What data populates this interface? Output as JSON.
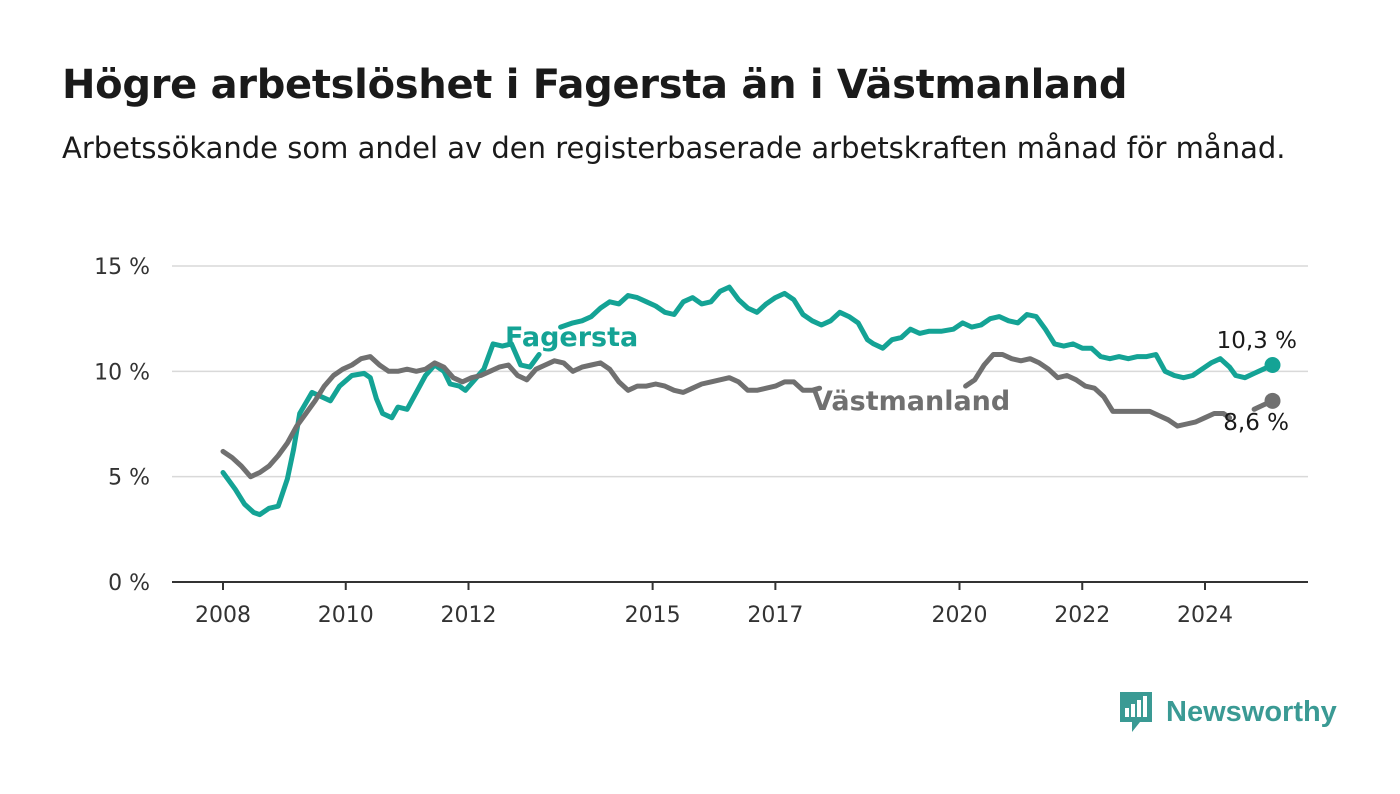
{
  "title": "Högre arbetslöshet i Fagersta än i Västmanland",
  "subtitle": "Arbetssökande som andel av den registerbaserade arbetskraften månad för månad.",
  "brand": {
    "name": "Newsworthy",
    "color": "#3a9a94",
    "icon": "newsworthy-chart-bubble-icon"
  },
  "chart_data": {
    "type": "line",
    "ylim": [
      0,
      15
    ],
    "yticks": [
      0,
      5,
      10,
      15
    ],
    "ytick_labels": [
      "0 %",
      "5 %",
      "10 %",
      "15 %"
    ],
    "xlim": [
      2007.6,
      2025.7
    ],
    "xticks": [
      2008,
      2010,
      2012,
      2015,
      2017,
      2020,
      2022,
      2024
    ],
    "xtick_labels": [
      "2008",
      "2010",
      "2012",
      "2015",
      "2017",
      "2020",
      "2022",
      "2024"
    ],
    "grid": true,
    "legend": "inline labels",
    "series": [
      {
        "name": "Fagersta",
        "color": "#14a395",
        "end_label": "10,3 %",
        "end_value": 10.3,
        "points": [
          [
            2008.0,
            5.2
          ],
          [
            2008.2,
            4.4
          ],
          [
            2008.35,
            3.7
          ],
          [
            2008.5,
            3.3
          ],
          [
            2008.6,
            3.2
          ],
          [
            2008.75,
            3.5
          ],
          [
            2008.9,
            3.6
          ],
          [
            2009.05,
            4.9
          ],
          [
            2009.15,
            6.3
          ],
          [
            2009.25,
            8.0
          ],
          [
            2009.35,
            8.5
          ],
          [
            2009.45,
            9.0
          ],
          [
            2009.6,
            8.8
          ],
          [
            2009.75,
            8.6
          ],
          [
            2009.9,
            9.3
          ],
          [
            2010.1,
            9.8
          ],
          [
            2010.3,
            9.9
          ],
          [
            2010.4,
            9.7
          ],
          [
            2010.5,
            8.7
          ],
          [
            2010.6,
            8.0
          ],
          [
            2010.75,
            7.8
          ],
          [
            2010.85,
            8.3
          ],
          [
            2011.0,
            8.2
          ],
          [
            2011.15,
            9.0
          ],
          [
            2011.3,
            9.8
          ],
          [
            2011.45,
            10.3
          ],
          [
            2011.6,
            10.0
          ],
          [
            2011.7,
            9.4
          ],
          [
            2011.85,
            9.3
          ],
          [
            2011.95,
            9.1
          ],
          [
            2012.1,
            9.6
          ],
          [
            2012.25,
            10.1
          ],
          [
            2012.4,
            11.3
          ],
          [
            2012.55,
            11.2
          ],
          [
            2012.7,
            11.3
          ],
          [
            2012.85,
            10.3
          ],
          [
            2013.0,
            10.2
          ],
          [
            2013.15,
            10.8
          ]
        ],
        "points2": [
          [
            2013.5,
            12.1
          ],
          [
            2013.7,
            12.3
          ],
          [
            2013.85,
            12.4
          ],
          [
            2014.0,
            12.6
          ],
          [
            2014.15,
            13.0
          ],
          [
            2014.3,
            13.3
          ],
          [
            2014.45,
            13.2
          ],
          [
            2014.6,
            13.6
          ],
          [
            2014.75,
            13.5
          ],
          [
            2014.9,
            13.3
          ],
          [
            2015.05,
            13.1
          ],
          [
            2015.2,
            12.8
          ],
          [
            2015.35,
            12.7
          ],
          [
            2015.5,
            13.3
          ],
          [
            2015.65,
            13.5
          ],
          [
            2015.8,
            13.2
          ],
          [
            2015.95,
            13.3
          ],
          [
            2016.1,
            13.8
          ],
          [
            2016.25,
            14.0
          ],
          [
            2016.4,
            13.4
          ],
          [
            2016.55,
            13.0
          ],
          [
            2016.7,
            12.8
          ],
          [
            2016.85,
            13.2
          ],
          [
            2017.0,
            13.5
          ],
          [
            2017.15,
            13.7
          ],
          [
            2017.3,
            13.4
          ],
          [
            2017.45,
            12.7
          ],
          [
            2017.6,
            12.4
          ],
          [
            2017.75,
            12.2
          ],
          [
            2017.9,
            12.4
          ],
          [
            2018.05,
            12.8
          ],
          [
            2018.2,
            12.6
          ],
          [
            2018.35,
            12.3
          ],
          [
            2018.5,
            11.5
          ],
          [
            2018.6,
            11.3
          ],
          [
            2018.75,
            11.1
          ],
          [
            2018.9,
            11.5
          ],
          [
            2019.05,
            11.6
          ],
          [
            2019.2,
            12.0
          ],
          [
            2019.35,
            11.8
          ],
          [
            2019.5,
            11.9
          ],
          [
            2019.7,
            11.9
          ],
          [
            2019.9,
            12.0
          ],
          [
            2020.05,
            12.3
          ],
          [
            2020.2,
            12.1
          ],
          [
            2020.35,
            12.2
          ],
          [
            2020.5,
            12.5
          ],
          [
            2020.65,
            12.6
          ],
          [
            2020.8,
            12.4
          ],
          [
            2020.95,
            12.3
          ],
          [
            2021.1,
            12.7
          ],
          [
            2021.25,
            12.6
          ],
          [
            2021.4,
            12.0
          ],
          [
            2021.55,
            11.3
          ],
          [
            2021.7,
            11.2
          ],
          [
            2021.85,
            11.3
          ],
          [
            2022.0,
            11.1
          ],
          [
            2022.15,
            11.1
          ],
          [
            2022.3,
            10.7
          ],
          [
            2022.45,
            10.6
          ],
          [
            2022.6,
            10.7
          ],
          [
            2022.75,
            10.6
          ],
          [
            2022.9,
            10.7
          ],
          [
            2023.05,
            10.7
          ],
          [
            2023.2,
            10.8
          ],
          [
            2023.35,
            10.0
          ],
          [
            2023.5,
            9.8
          ],
          [
            2023.65,
            9.7
          ],
          [
            2023.8,
            9.8
          ],
          [
            2023.95,
            10.1
          ],
          [
            2024.1,
            10.4
          ],
          [
            2024.25,
            10.6
          ],
          [
            2024.4,
            10.2
          ],
          [
            2024.5,
            9.8
          ],
          [
            2024.65,
            9.7
          ],
          [
            2024.8,
            9.9
          ],
          [
            2024.95,
            10.1
          ],
          [
            2025.1,
            10.3
          ]
        ]
      },
      {
        "name": "Västmanland",
        "color": "#707070",
        "end_label": "8,6 %",
        "end_value": 8.6,
        "points": [
          [
            2008.0,
            6.2
          ],
          [
            2008.15,
            5.9
          ],
          [
            2008.3,
            5.5
          ],
          [
            2008.45,
            5.0
          ],
          [
            2008.6,
            5.2
          ],
          [
            2008.75,
            5.5
          ],
          [
            2008.9,
            6.0
          ],
          [
            2009.05,
            6.6
          ],
          [
            2009.2,
            7.4
          ],
          [
            2009.35,
            8.0
          ],
          [
            2009.5,
            8.6
          ],
          [
            2009.65,
            9.3
          ],
          [
            2009.8,
            9.8
          ],
          [
            2009.95,
            10.1
          ],
          [
            2010.1,
            10.3
          ],
          [
            2010.25,
            10.6
          ],
          [
            2010.4,
            10.7
          ],
          [
            2010.55,
            10.3
          ],
          [
            2010.7,
            10.0
          ],
          [
            2010.85,
            10.0
          ],
          [
            2011.0,
            10.1
          ],
          [
            2011.15,
            10.0
          ],
          [
            2011.3,
            10.1
          ],
          [
            2011.45,
            10.4
          ],
          [
            2011.6,
            10.2
          ],
          [
            2011.75,
            9.7
          ],
          [
            2011.9,
            9.5
          ],
          [
            2012.05,
            9.7
          ],
          [
            2012.2,
            9.8
          ],
          [
            2012.35,
            10.0
          ],
          [
            2012.5,
            10.2
          ],
          [
            2012.65,
            10.3
          ],
          [
            2012.8,
            9.8
          ],
          [
            2012.95,
            9.6
          ],
          [
            2013.1,
            10.1
          ],
          [
            2013.25,
            10.3
          ],
          [
            2013.4,
            10.5
          ],
          [
            2013.55,
            10.4
          ],
          [
            2013.7,
            10.0
          ],
          [
            2013.85,
            10.2
          ],
          [
            2014.0,
            10.3
          ],
          [
            2014.15,
            10.4
          ],
          [
            2014.3,
            10.1
          ],
          [
            2014.45,
            9.5
          ],
          [
            2014.6,
            9.1
          ],
          [
            2014.75,
            9.3
          ],
          [
            2014.9,
            9.3
          ],
          [
            2015.05,
            9.4
          ],
          [
            2015.2,
            9.3
          ],
          [
            2015.35,
            9.1
          ],
          [
            2015.5,
            9.0
          ],
          [
            2015.65,
            9.2
          ],
          [
            2015.8,
            9.4
          ],
          [
            2015.95,
            9.5
          ],
          [
            2016.1,
            9.6
          ],
          [
            2016.25,
            9.7
          ],
          [
            2016.4,
            9.5
          ],
          [
            2016.55,
            9.1
          ],
          [
            2016.7,
            9.1
          ],
          [
            2016.85,
            9.2
          ],
          [
            2017.0,
            9.3
          ],
          [
            2017.15,
            9.5
          ],
          [
            2017.3,
            9.5
          ],
          [
            2017.45,
            9.1
          ],
          [
            2017.6,
            9.1
          ],
          [
            2017.72,
            9.2
          ]
        ],
        "points2": [
          [
            2020.1,
            9.3
          ],
          [
            2020.25,
            9.6
          ],
          [
            2020.4,
            10.3
          ],
          [
            2020.55,
            10.8
          ],
          [
            2020.7,
            10.8
          ],
          [
            2020.85,
            10.6
          ],
          [
            2021.0,
            10.5
          ],
          [
            2021.15,
            10.6
          ],
          [
            2021.3,
            10.4
          ],
          [
            2021.45,
            10.1
          ],
          [
            2021.6,
            9.7
          ],
          [
            2021.75,
            9.8
          ],
          [
            2021.9,
            9.6
          ],
          [
            2022.05,
            9.3
          ],
          [
            2022.2,
            9.2
          ],
          [
            2022.35,
            8.8
          ],
          [
            2022.5,
            8.1
          ],
          [
            2022.65,
            8.1
          ],
          [
            2022.8,
            8.1
          ],
          [
            2022.95,
            8.1
          ],
          [
            2023.1,
            8.1
          ],
          [
            2023.25,
            7.9
          ],
          [
            2023.4,
            7.7
          ],
          [
            2023.55,
            7.4
          ],
          [
            2023.7,
            7.5
          ],
          [
            2023.85,
            7.6
          ],
          [
            2024.0,
            7.8
          ],
          [
            2024.15,
            8.0
          ],
          [
            2024.3,
            8.0
          ],
          [
            2024.4,
            7.8
          ]
        ],
        "points3": [
          [
            2024.8,
            8.2
          ],
          [
            2024.95,
            8.4
          ],
          [
            2025.1,
            8.6
          ]
        ]
      }
    ]
  }
}
